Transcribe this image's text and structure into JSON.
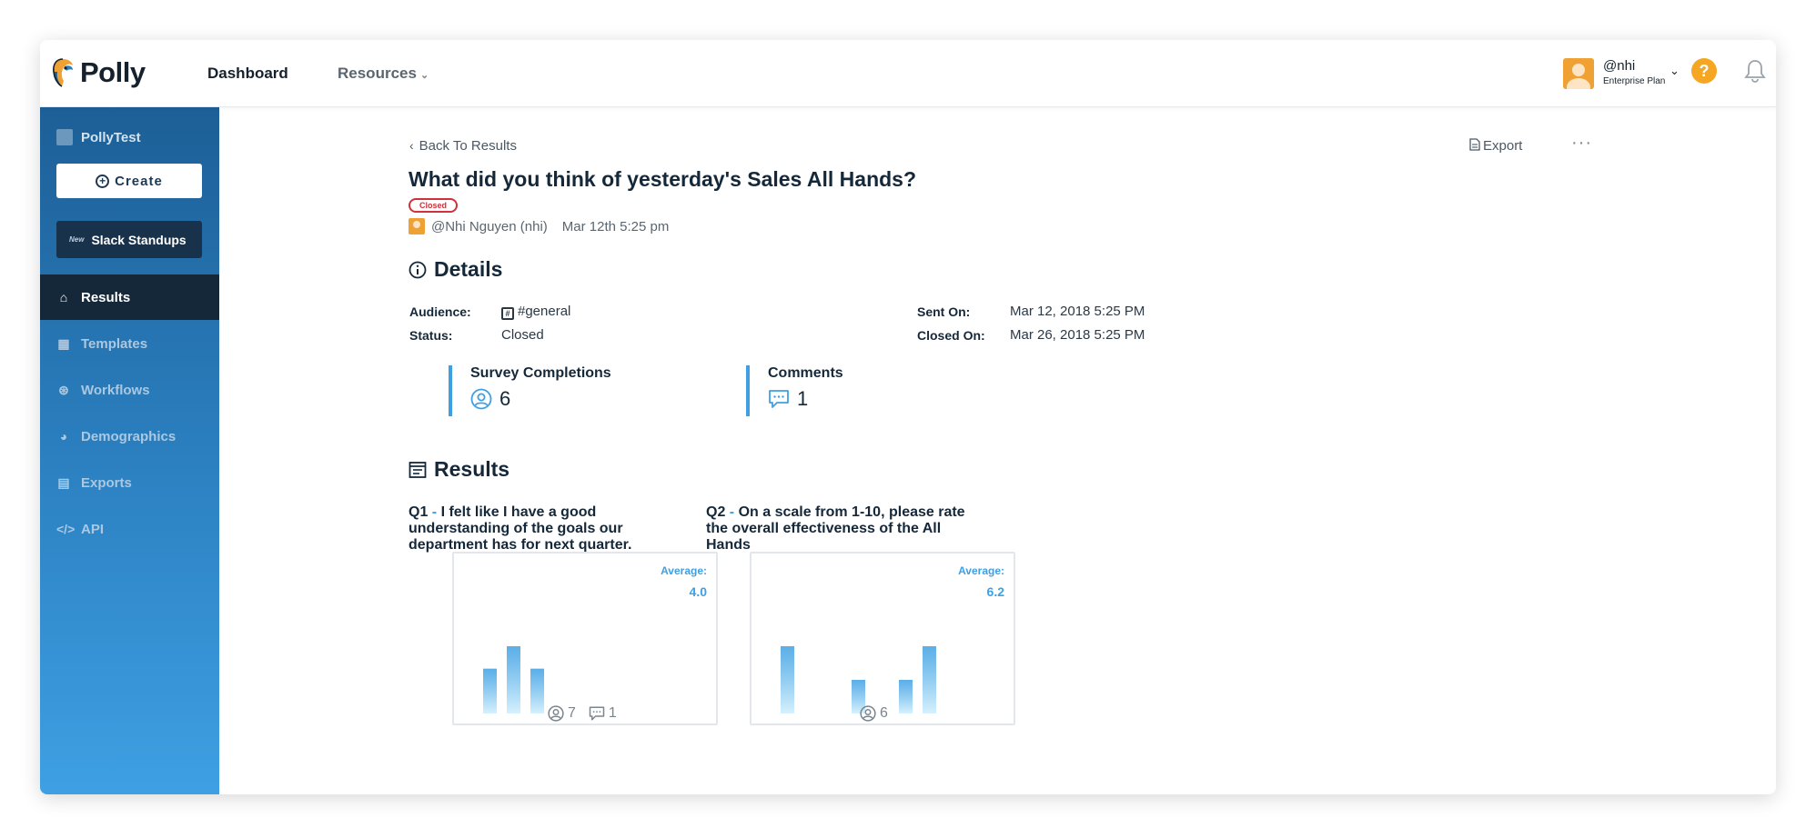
{
  "app": {
    "name": "Polly"
  },
  "topnav": {
    "dashboard": "Dashboard",
    "resources": "Resources"
  },
  "user": {
    "handle": "@nhi",
    "plan": "Enterprise Plan"
  },
  "sidebar": {
    "workspace": "PollyTest",
    "create_label": "Create",
    "slack_new_tag": "New",
    "slack_label": "Slack Standups",
    "items": [
      {
        "label": "Results",
        "icon": "home-icon",
        "active": true
      },
      {
        "label": "Templates",
        "icon": "calendar-icon"
      },
      {
        "label": "Workflows",
        "icon": "workflow-icon"
      },
      {
        "label": "Demographics",
        "icon": "pie-icon"
      },
      {
        "label": "Exports",
        "icon": "file-icon"
      },
      {
        "label": "API",
        "icon": "code-icon"
      }
    ]
  },
  "page": {
    "back_label": "Back To Results",
    "export_label": "Export",
    "more_label": "···",
    "title": "What did you think of yesterday's Sales All Hands?",
    "status_badge": "Closed",
    "author": "@Nhi Nguyen (nhi)",
    "created": "Mar 12th 5:25 pm"
  },
  "details": {
    "heading": "Details",
    "audience_label": "Audience:",
    "audience_value": "#general",
    "status_label": "Status:",
    "status_value": "Closed",
    "sent_label": "Sent On:",
    "sent_value": "Mar 12, 2018 5:25 PM",
    "closed_label": "Closed On:",
    "closed_value": "Mar 26, 2018 5:25 PM"
  },
  "stats": {
    "completions_label": "Survey Completions",
    "completions_value": "6",
    "comments_label": "Comments",
    "comments_value": "1"
  },
  "results": {
    "heading": "Results",
    "questions": [
      {
        "num": "Q1",
        "dash": " - ",
        "text": "I felt like I have a good understanding of the goals our department has for next quarter.",
        "avg_label": "Average:",
        "avg_value": "4.0",
        "responses": "7",
        "comments": "1"
      },
      {
        "num": "Q2",
        "dash": " - ",
        "text": "On a scale from 1-10, please rate the overall effectiveness of the All Hands",
        "avg_label": "Average:",
        "avg_value": "6.2",
        "responses": "6"
      }
    ]
  },
  "chart_data": [
    {
      "type": "bar",
      "question": "Q1",
      "values": [
        2,
        3,
        2,
        0,
        0
      ],
      "ylim": [
        0,
        3
      ]
    },
    {
      "type": "bar",
      "question": "Q2",
      "values": [
        3,
        0,
        0,
        1.5,
        0,
        1.5,
        3
      ],
      "ylim": [
        0,
        3
      ]
    }
  ],
  "colors": {
    "accent": "#3ea0e3",
    "bar_light": "#d6f1fd",
    "danger": "#d0313b",
    "help": "#f5a623"
  }
}
